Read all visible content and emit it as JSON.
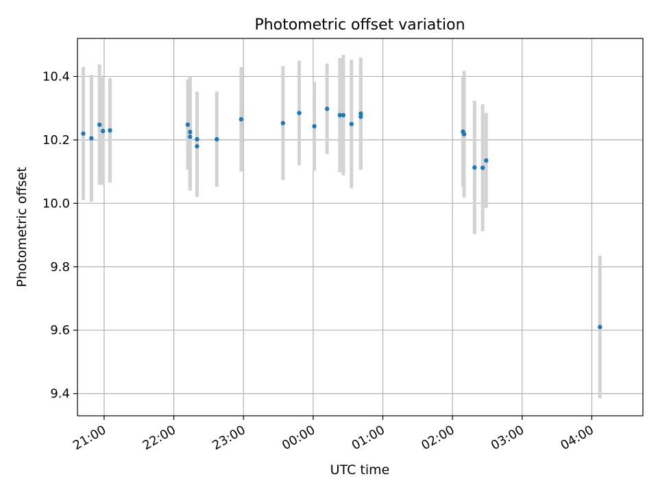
{
  "chart_data": {
    "type": "scatter",
    "title": "Photometric offset variation",
    "xlabel": "UTC time",
    "ylabel": "Photometric offset",
    "x_tick_labels": [
      "21:00",
      "22:00",
      "23:00",
      "00:00",
      "01:00",
      "02:00",
      "03:00",
      "04:00"
    ],
    "y_tick_labels": [
      "9.4",
      "9.6",
      "9.8",
      "10.0",
      "10.2",
      "10.4"
    ],
    "xlim": [
      "20:37",
      "04:44"
    ],
    "ylim": [
      9.33,
      10.52
    ],
    "grid": true,
    "marker_color": "#1f77b4",
    "errorbar_color": "#d3d3d3",
    "points": [
      {
        "x": "20:42",
        "y": 10.22,
        "err": 0.21
      },
      {
        "x": "20:49",
        "y": 10.205,
        "err": 0.2
      },
      {
        "x": "20:56",
        "y": 10.248,
        "err": 0.19
      },
      {
        "x": "20:59",
        "y": 10.228,
        "err": 0.17
      },
      {
        "x": "21:05",
        "y": 10.23,
        "err": 0.165
      },
      {
        "x": "22:12",
        "y": 10.248,
        "err": 0.142
      },
      {
        "x": "22:14",
        "y": 10.21,
        "err": 0.17
      },
      {
        "x": "22:14",
        "y": 10.225,
        "err": 0.175
      },
      {
        "x": "22:20",
        "y": 10.202,
        "err": 0.15
      },
      {
        "x": "22:20",
        "y": 10.18,
        "err": 0.16
      },
      {
        "x": "22:37",
        "y": 10.202,
        "err": 0.15
      },
      {
        "x": "22:58",
        "y": 10.265,
        "err": 0.165
      },
      {
        "x": "23:34",
        "y": 10.253,
        "err": 0.18
      },
      {
        "x": "23:48",
        "y": 10.285,
        "err": 0.165
      },
      {
        "x": "00:01",
        "y": 10.243,
        "err": 0.14
      },
      {
        "x": "00:12",
        "y": 10.298,
        "err": 0.143
      },
      {
        "x": "00:23",
        "y": 10.278,
        "err": 0.18
      },
      {
        "x": "00:26",
        "y": 10.278,
        "err": 0.19
      },
      {
        "x": "00:33",
        "y": 10.25,
        "err": 0.203
      },
      {
        "x": "00:41",
        "y": 10.273,
        "err": 0.164
      },
      {
        "x": "00:41",
        "y": 10.283,
        "err": 0.177
      },
      {
        "x": "02:09",
        "y": 10.226,
        "err": 0.175
      },
      {
        "x": "02:10",
        "y": 10.218,
        "err": 0.2
      },
      {
        "x": "02:19",
        "y": 10.113,
        "err": 0.21
      },
      {
        "x": "02:26",
        "y": 10.112,
        "err": 0.2
      },
      {
        "x": "02:29",
        "y": 10.135,
        "err": 0.15
      },
      {
        "x": "04:07",
        "y": 9.61,
        "err": 0.225
      }
    ]
  }
}
